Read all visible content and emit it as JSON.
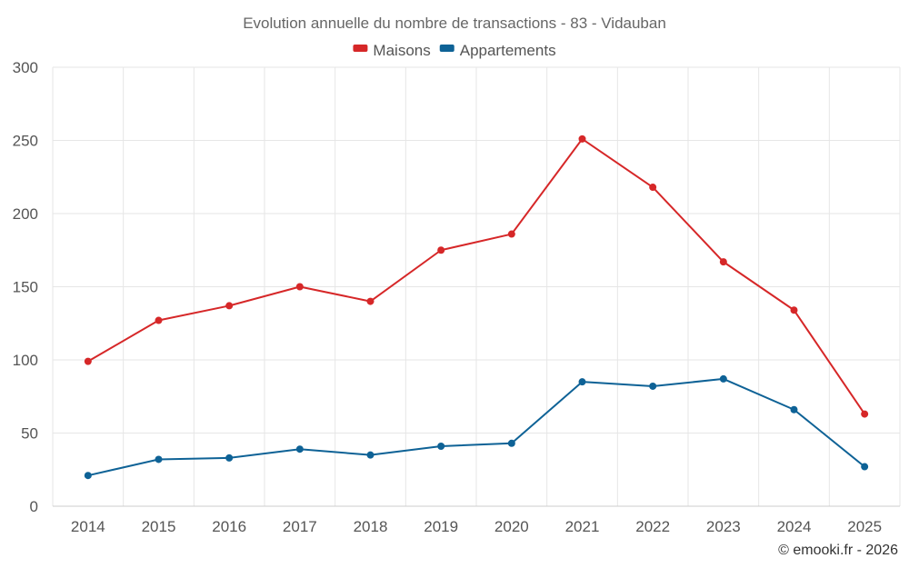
{
  "chart_data": {
    "type": "line",
    "title": "Evolution annuelle du nombre de transactions - 83 - Vidauban",
    "categories": [
      "2014",
      "2015",
      "2016",
      "2017",
      "2018",
      "2019",
      "2020",
      "2021",
      "2022",
      "2023",
      "2024",
      "2025"
    ],
    "series": [
      {
        "name": "Maisons",
        "color": "#d62728",
        "values": [
          99,
          127,
          137,
          150,
          140,
          175,
          186,
          251,
          218,
          167,
          134,
          63
        ]
      },
      {
        "name": "Appartements",
        "color": "#0e6296",
        "values": [
          21,
          32,
          33,
          39,
          35,
          41,
          43,
          85,
          82,
          87,
          66,
          27
        ]
      }
    ],
    "ylim": [
      0,
      300
    ],
    "yticks": [
      0,
      50,
      100,
      150,
      200,
      250,
      300
    ],
    "grid": true,
    "legend_position": "top-center",
    "xlabel": "",
    "ylabel": ""
  },
  "credit": "© emooki.fr - 2026"
}
